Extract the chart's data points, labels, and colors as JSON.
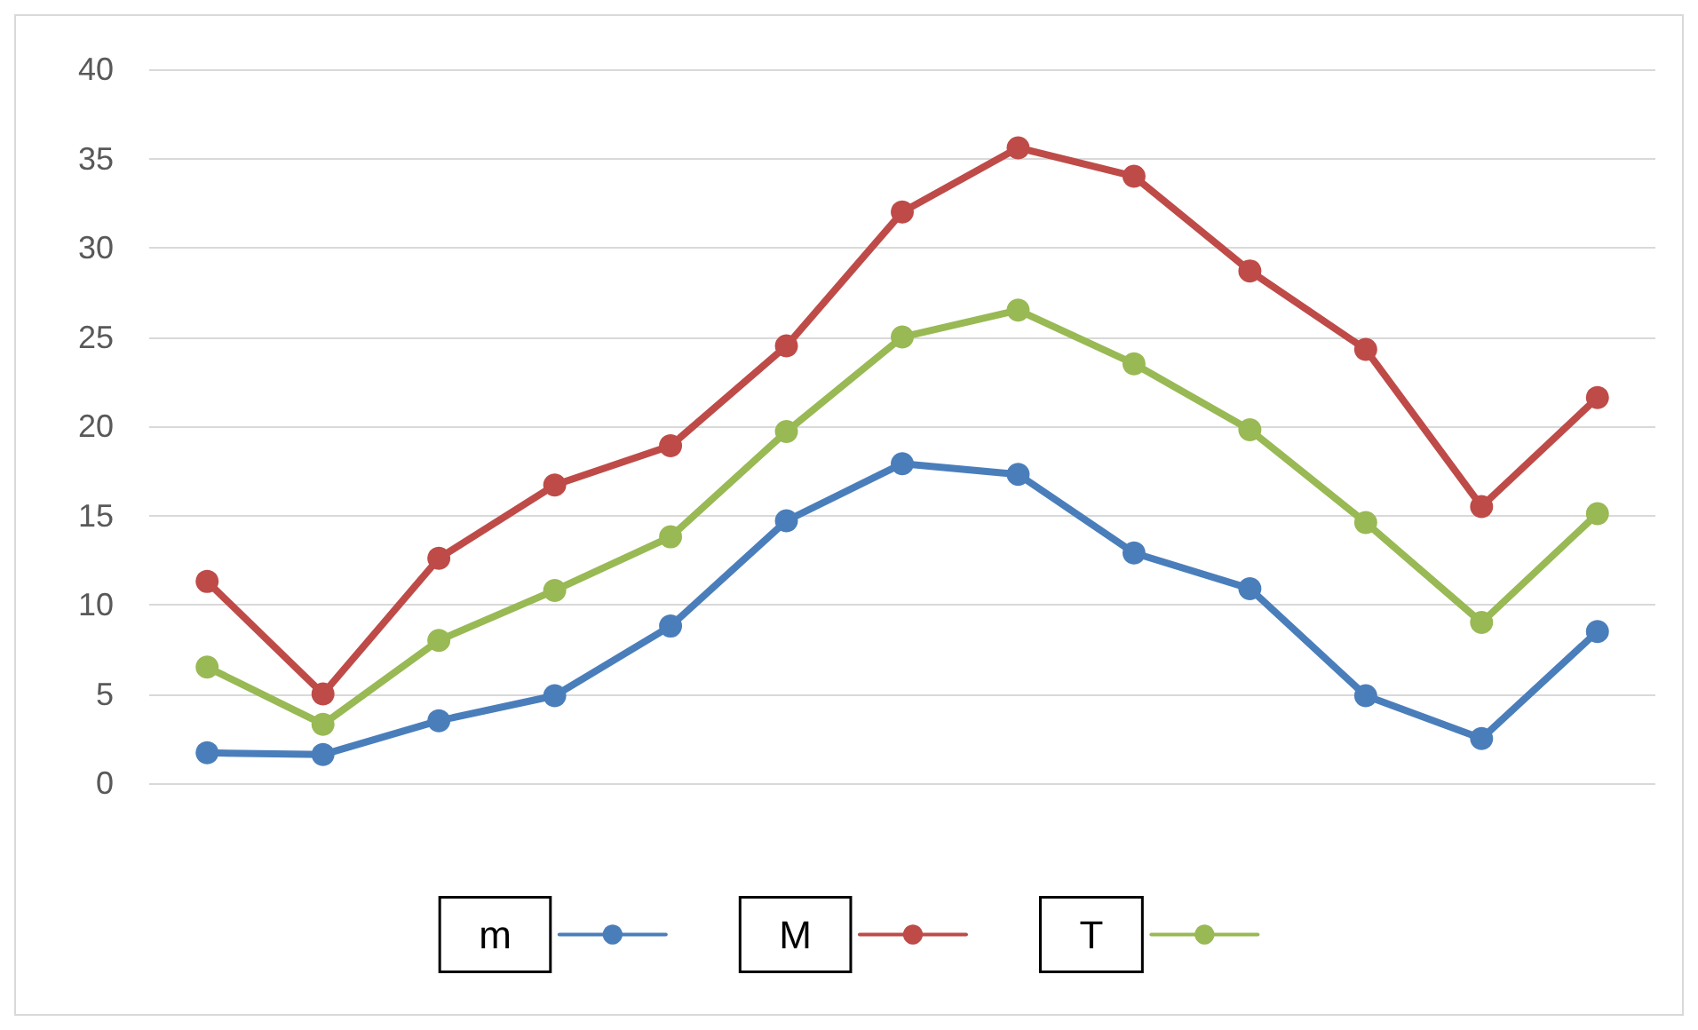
{
  "chart_data": {
    "type": "line",
    "categories": [
      null,
      null,
      null,
      null,
      null,
      null,
      null,
      null,
      null,
      null,
      null,
      null,
      null
    ],
    "series": [
      {
        "name": "m",
        "color": "#4a7ebb",
        "values": [
          1.7,
          1.6,
          3.5,
          4.9,
          8.8,
          14.7,
          17.9,
          17.3,
          12.9,
          10.9,
          4.9,
          2.5,
          8.5
        ]
      },
      {
        "name": "M",
        "color": "#be4b48",
        "values": [
          11.3,
          5.0,
          12.6,
          16.7,
          18.9,
          24.5,
          32.0,
          35.6,
          34.0,
          28.7,
          24.3,
          15.5,
          21.6
        ]
      },
      {
        "name": "T",
        "color": "#98b954",
        "values": [
          6.5,
          3.3,
          8.0,
          10.8,
          13.8,
          19.7,
          25.0,
          26.5,
          23.5,
          19.8,
          14.6,
          9.0,
          15.1
        ]
      }
    ],
    "ylim": [
      0,
      40
    ],
    "yticks": [
      0,
      5,
      10,
      15,
      20,
      25,
      30,
      35,
      40
    ],
    "grid": "y",
    "legend": "bottom",
    "marker": "circle",
    "line_style": "solid"
  }
}
